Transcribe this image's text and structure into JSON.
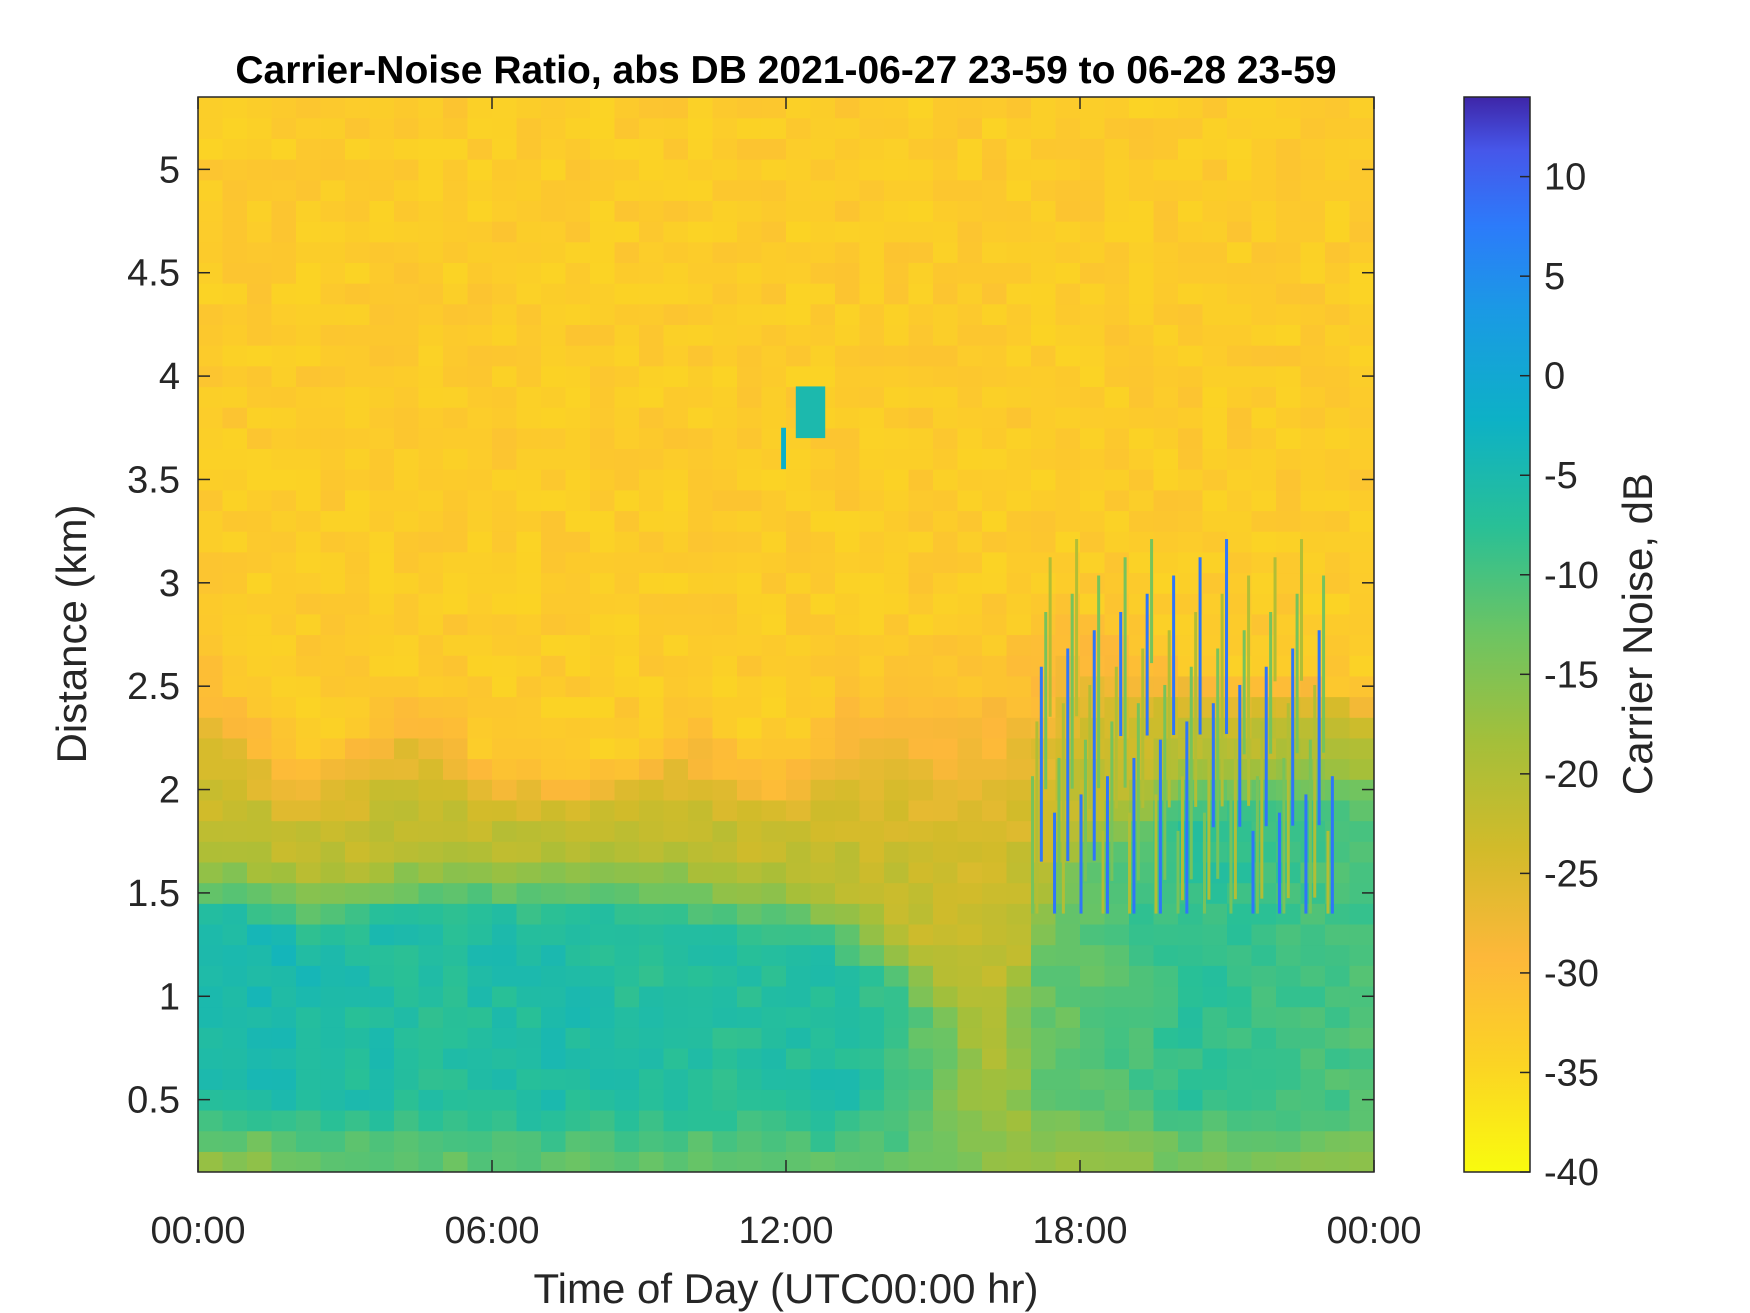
{
  "chart_data": {
    "type": "heatmap",
    "title": "Carrier-Noise Ratio, abs DB 2021-06-27 23-59 to 06-28 23-59",
    "xlabel": "Time of Day (UTC00:00 hr)",
    "ylabel": "Distance (km)",
    "colorbar_label": "Carrier Noise, dB",
    "colormap": "parula",
    "colormap_reversed": true,
    "x_ticks": [
      "00:00",
      "06:00",
      "12:00",
      "18:00",
      "00:00"
    ],
    "x_tick_hours": [
      0,
      6,
      12,
      18,
      24
    ],
    "xlim_hours": [
      0,
      24
    ],
    "y_ticks": [
      0.5,
      1,
      1.5,
      2,
      2.5,
      3,
      3.5,
      4,
      4.5,
      5
    ],
    "y_tick_labels": [
      "0.5",
      "1",
      "1.5",
      "2",
      "2.5",
      "3",
      "3.5",
      "4",
      "4.5",
      "5"
    ],
    "ylim": [
      0.15,
      5.35
    ],
    "colorbar_ticks": [
      10,
      5,
      0,
      -5,
      -10,
      -15,
      -20,
      -25,
      -30,
      -35,
      -40
    ],
    "colorbar_tick_labels": [
      "10",
      "5",
      "0",
      "-5",
      "-10",
      "-15",
      "-20",
      "-25",
      "-30",
      "-35",
      "-40"
    ],
    "clim": [
      -40,
      14
    ],
    "time_bins": 48,
    "distance_bins": 52,
    "profiles": {
      "description_hours": [
        0,
        1,
        2,
        3,
        4,
        5,
        6,
        7,
        8,
        9,
        10,
        11,
        12,
        13,
        14,
        15,
        16,
        16.5,
        17,
        17.5,
        18,
        19,
        20,
        21,
        22,
        23,
        24
      ],
      "near_surface_value_db": [
        -16,
        -16,
        -14,
        -13,
        -12,
        -12,
        -12,
        -12,
        -12,
        -12,
        -12,
        -12,
        -12,
        -11,
        -11,
        -13,
        -15,
        -17,
        -17,
        -18,
        -18,
        -16,
        -14,
        -14,
        -14,
        -15,
        -16
      ],
      "core_value_db": [
        -6,
        -5,
        -5,
        -6,
        -6,
        -7,
        -6,
        -6,
        -6,
        -7,
        -7,
        -7,
        -7,
        -6,
        -8,
        -12,
        -18,
        -20,
        -13,
        -12,
        -12,
        -10,
        -8,
        -8,
        -9,
        -10,
        -10
      ],
      "core_top_km": [
        1.3,
        1.3,
        1.2,
        1.2,
        1.3,
        1.3,
        1.3,
        1.3,
        1.3,
        1.3,
        1.3,
        1.2,
        1.2,
        1.1,
        1.0,
        0.8,
        0.6,
        0.7,
        1.0,
        1.3,
        1.5,
        1.6,
        1.8,
        1.8,
        1.8,
        1.8,
        1.8
      ],
      "transition_top_km": [
        2.9,
        2.6,
        2.2,
        2.4,
        2.7,
        2.6,
        2.2,
        2.2,
        2.2,
        2.3,
        2.5,
        2.3,
        2.2,
        2.7,
        2.8,
        2.9,
        3.0,
        3.1,
        3.0,
        3.0,
        3.1,
        2.9,
        2.7,
        2.6,
        2.6,
        2.6,
        2.5
      ],
      "background_value_db": -33
    },
    "features": [
      {
        "name": "elevated patch",
        "hour_range": [
          12.2,
          12.8
        ],
        "km_range": [
          3.7,
          3.95
        ],
        "value_db": -5
      },
      {
        "name": "elevated patch lower",
        "hour_range": [
          11.9,
          12.0
        ],
        "km_range": [
          3.55,
          3.75
        ],
        "value_db": -2
      },
      {
        "name": "convective streaks",
        "hour_range": [
          17.0,
          23.2
        ],
        "km_range": [
          1.5,
          3.3
        ],
        "value_db": 8
      }
    ]
  }
}
